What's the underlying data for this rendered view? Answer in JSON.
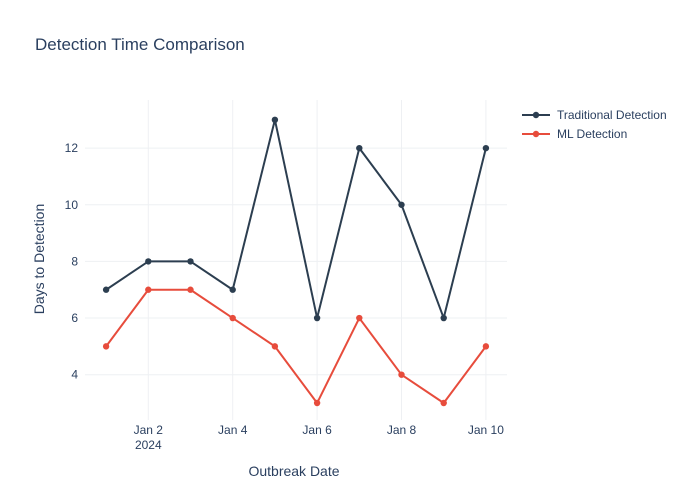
{
  "chart_data": {
    "type": "line",
    "title": "Detection Time Comparison",
    "xlabel": "Outbreak Date",
    "ylabel": "Days to Detection",
    "x": [
      "2024-01-01",
      "2024-01-02",
      "2024-01-03",
      "2024-01-04",
      "2024-01-05",
      "2024-01-06",
      "2024-01-07",
      "2024-01-08",
      "2024-01-09",
      "2024-01-10"
    ],
    "x_ticks": [
      {
        "date": "2024-01-02",
        "label": "Jan 2",
        "sublabel": "2024"
      },
      {
        "date": "2024-01-04",
        "label": "Jan 4",
        "sublabel": ""
      },
      {
        "date": "2024-01-06",
        "label": "Jan 6",
        "sublabel": ""
      },
      {
        "date": "2024-01-08",
        "label": "Jan 8",
        "sublabel": ""
      },
      {
        "date": "2024-01-10",
        "label": "Jan 10",
        "sublabel": ""
      }
    ],
    "y_ticks": [
      4,
      6,
      8,
      10,
      12
    ],
    "ylim": [
      2.4,
      13.7
    ],
    "xlim": [
      "2023-12-31T12:00",
      "2024-01-10T12:00"
    ],
    "grid": true,
    "legend_position": "top-right",
    "series": [
      {
        "name": "Traditional Detection",
        "color": "#2c3e50",
        "values": [
          7,
          8,
          8,
          7,
          13,
          6,
          12,
          10,
          6,
          12
        ]
      },
      {
        "name": "ML Detection",
        "color": "#e74c3c",
        "values": [
          5,
          7,
          7,
          6,
          5,
          3,
          6,
          4,
          3,
          5
        ]
      }
    ]
  }
}
